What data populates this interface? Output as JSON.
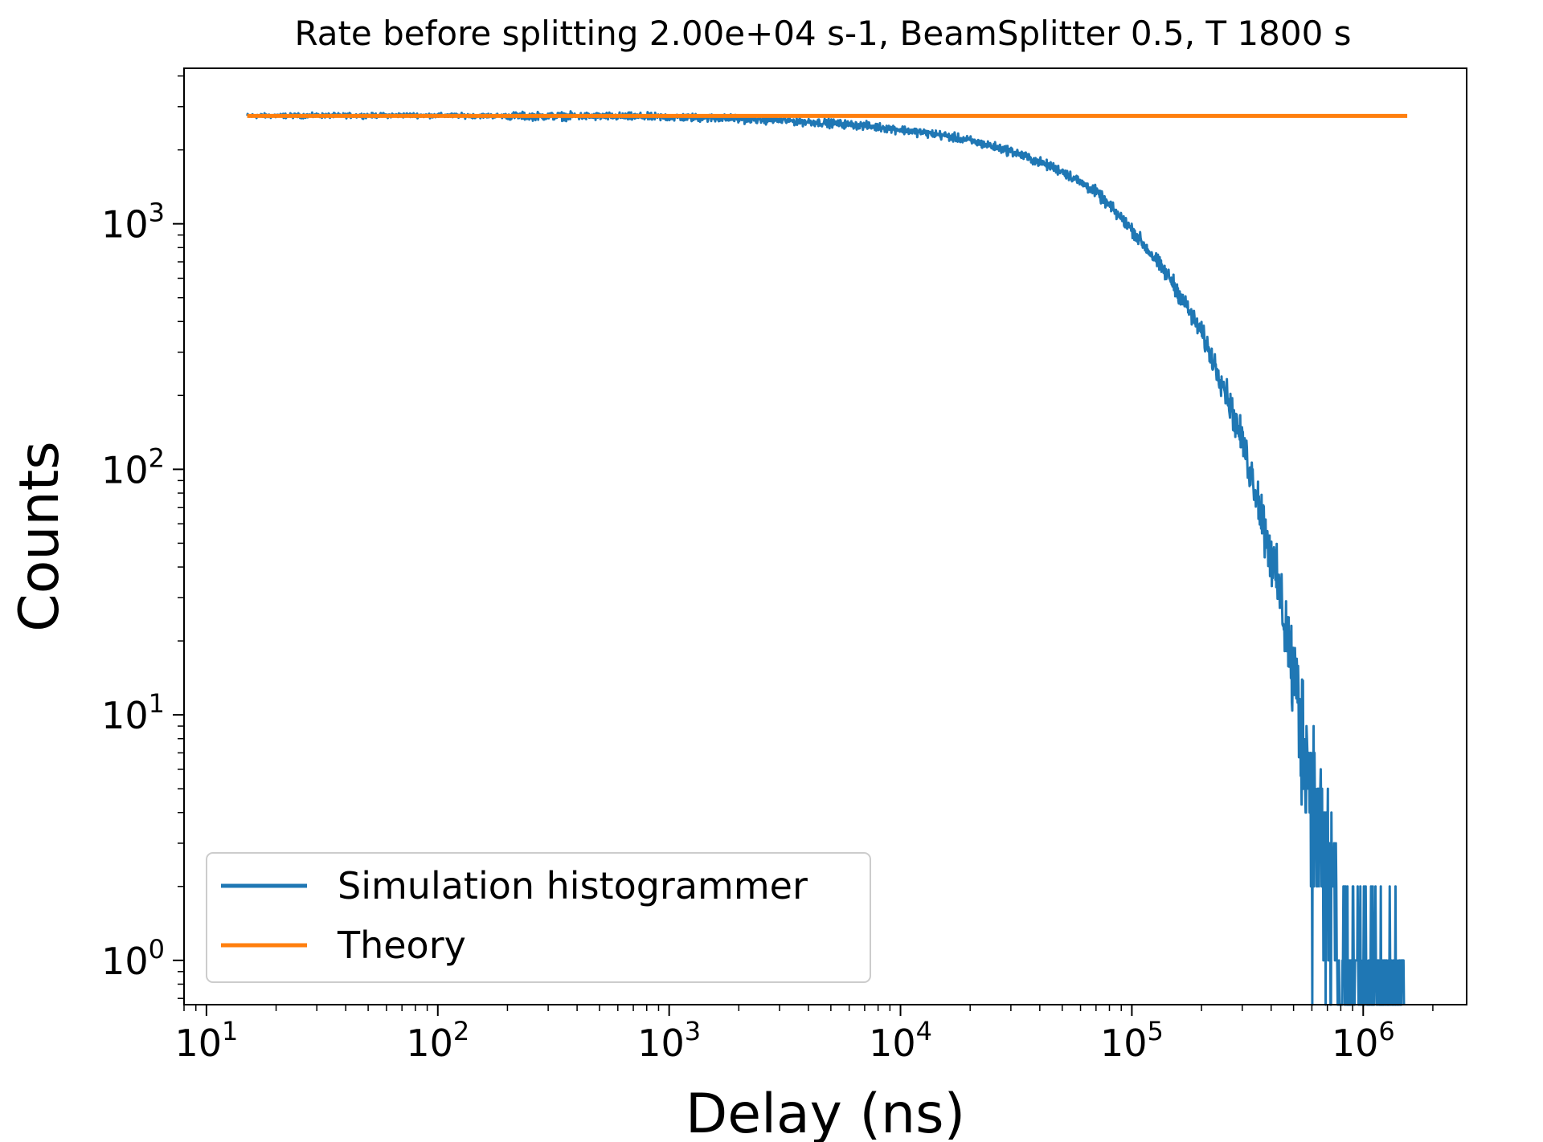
{
  "chart_data": {
    "type": "line",
    "title": "Rate before splitting 2.00e+04 s-1, BeamSplitter 0.5, T 1800 s",
    "xlabel": "Delay (ns)",
    "ylabel": "Counts",
    "xscale": "log",
    "yscale": "log",
    "xlim": [
      8,
      2800000
    ],
    "ylim": [
      0.66,
      4300
    ],
    "grid": false,
    "legend_position": "lower-left",
    "x_ticks": [
      {
        "base": "10",
        "exp": "1"
      },
      {
        "base": "10",
        "exp": "2"
      },
      {
        "base": "10",
        "exp": "3"
      },
      {
        "base": "10",
        "exp": "4"
      },
      {
        "base": "10",
        "exp": "5"
      },
      {
        "base": "10",
        "exp": "6"
      }
    ],
    "y_ticks": [
      {
        "base": "10",
        "exp": "0"
      },
      {
        "base": "10",
        "exp": "1"
      },
      {
        "base": "10",
        "exp": "2"
      },
      {
        "base": "10",
        "exp": "3"
      }
    ],
    "series": [
      {
        "name": "Simulation histogrammer",
        "color": "#1f77b4",
        "x": [
          15,
          30,
          50,
          75,
          100,
          200,
          500,
          1000,
          2000,
          3000,
          5000,
          7000,
          10000,
          15000,
          20000,
          30000,
          50000,
          70000,
          100000,
          150000,
          200000,
          250000,
          300000,
          350000,
          400000,
          450000,
          500000,
          550000,
          600000,
          700000,
          800000,
          1000000,
          1200000,
          1500000
        ],
        "y": [
          2750,
          2760,
          2760,
          2770,
          2760,
          2750,
          2740,
          2720,
          2680,
          2640,
          2570,
          2510,
          2420,
          2300,
          2180,
          1980,
          1640,
          1350,
          950,
          580,
          360,
          220,
          130,
          78,
          45,
          27,
          15,
          9,
          5.2,
          2.3,
          1.4,
          1,
          1,
          1
        ]
      },
      {
        "name": "Theory",
        "color": "#ff7f0e",
        "x": [
          15,
          1550000
        ],
        "y": [
          2750,
          2750
        ]
      }
    ]
  }
}
